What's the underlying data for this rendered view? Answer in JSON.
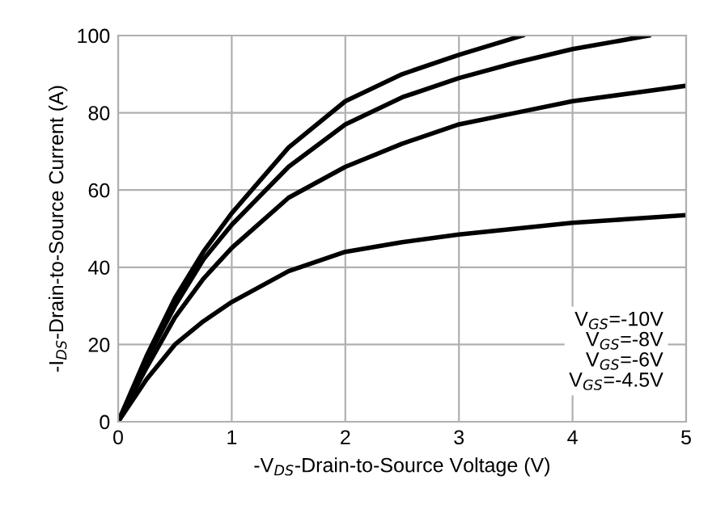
{
  "chart_data": {
    "type": "line",
    "xlabel": "-V$_{DS}$-Drain-to-Source Voltage (V)",
    "ylabel": "-I$_{DS}$-Drain-to-Source Current (A)",
    "xlim": [
      0,
      5
    ],
    "ylim": [
      0,
      100
    ],
    "xticks": [
      0,
      1,
      2,
      3,
      4,
      5
    ],
    "yticks": [
      0,
      20,
      40,
      60,
      80,
      100
    ],
    "grid": true,
    "marker": "none",
    "line_style": "solid",
    "series": [
      {
        "color": "#000000",
        "x": [
          0,
          0.25,
          0.5,
          0.75,
          1,
          1.5,
          2,
          2.5,
          3,
          3.56
        ],
        "values": [
          0,
          17,
          32,
          44,
          54,
          71,
          83,
          90,
          95,
          100
        ]
      },
      {
        "color": "#000000",
        "x": [
          0,
          0.25,
          0.5,
          0.75,
          1,
          1.5,
          2,
          2.5,
          3,
          3.5,
          4,
          4.67
        ],
        "values": [
          0,
          16,
          30,
          42,
          51,
          66,
          77,
          84,
          89,
          93,
          96.5,
          100
        ]
      },
      {
        "color": "#000000",
        "x": [
          0,
          0.25,
          0.5,
          0.75,
          1,
          1.5,
          2,
          2.5,
          3,
          3.5,
          4,
          4.5,
          5
        ],
        "values": [
          0,
          14,
          27,
          37,
          45,
          58,
          66,
          72,
          77,
          80,
          83,
          85,
          87
        ]
      },
      {
        "color": "#000000",
        "x": [
          0,
          0.25,
          0.5,
          0.75,
          1,
          1.5,
          2,
          2.5,
          3,
          3.5,
          4,
          4.5,
          5
        ],
        "values": [
          0,
          11,
          20,
          26,
          31,
          39,
          44,
          46.5,
          48.5,
          50,
          51.5,
          52.5,
          53.5
        ]
      }
    ],
    "annotations": [
      "V$_{GS}$=-10V\nV$_{GS}$=-8V\nV$_{GS}$=-6V\nV$_{GS}$=-4.5V"
    ]
  }
}
